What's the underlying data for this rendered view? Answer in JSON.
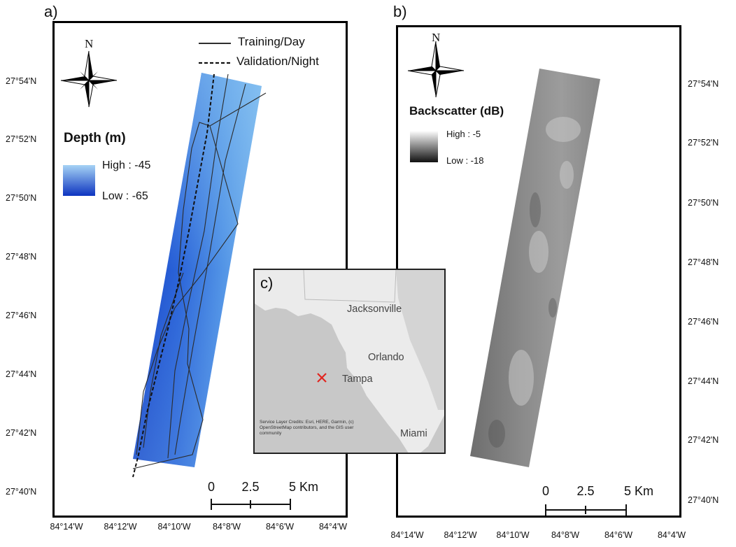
{
  "panels": {
    "a": {
      "label": "a)",
      "legend": {
        "title": "Depth (m)",
        "high": "High : -45",
        "low": "Low : -65",
        "color_high": "#a6d3f5",
        "color_low": "#0d34c0"
      },
      "lines_legend": {
        "solid": "Training/Day",
        "dashed": "Validation/Night"
      },
      "north": "N",
      "scale": {
        "ticks": [
          "0",
          "2.5",
          "5 Km"
        ]
      }
    },
    "b": {
      "label": "b)",
      "legend": {
        "title": "Backscatter (dB)",
        "high": "High : -5",
        "low": "Low : -18",
        "color_high": "#ffffff",
        "color_low": "#111111"
      },
      "north": "N",
      "scale": {
        "ticks": [
          "0",
          "2.5",
          "5 Km"
        ]
      }
    },
    "c": {
      "label": "c)",
      "cities": [
        "Jacksonville",
        "Orlando",
        "Tampa",
        "Miami"
      ],
      "credits": "Service Layer Credits: Esri, HERE, Garmin, (c) OpenStreetMap contributors, and the GIS user community",
      "marker_color": "#e0251f"
    }
  },
  "latitudes": [
    "27°54'N",
    "27°52'N",
    "27°50'N",
    "27°48'N",
    "27°46'N",
    "27°44'N",
    "27°42'N",
    "27°40'N"
  ],
  "longitudes": [
    "84°14'W",
    "84°12'W",
    "84°10'W",
    "84°8'W",
    "84°6'W",
    "84°4'W"
  ]
}
